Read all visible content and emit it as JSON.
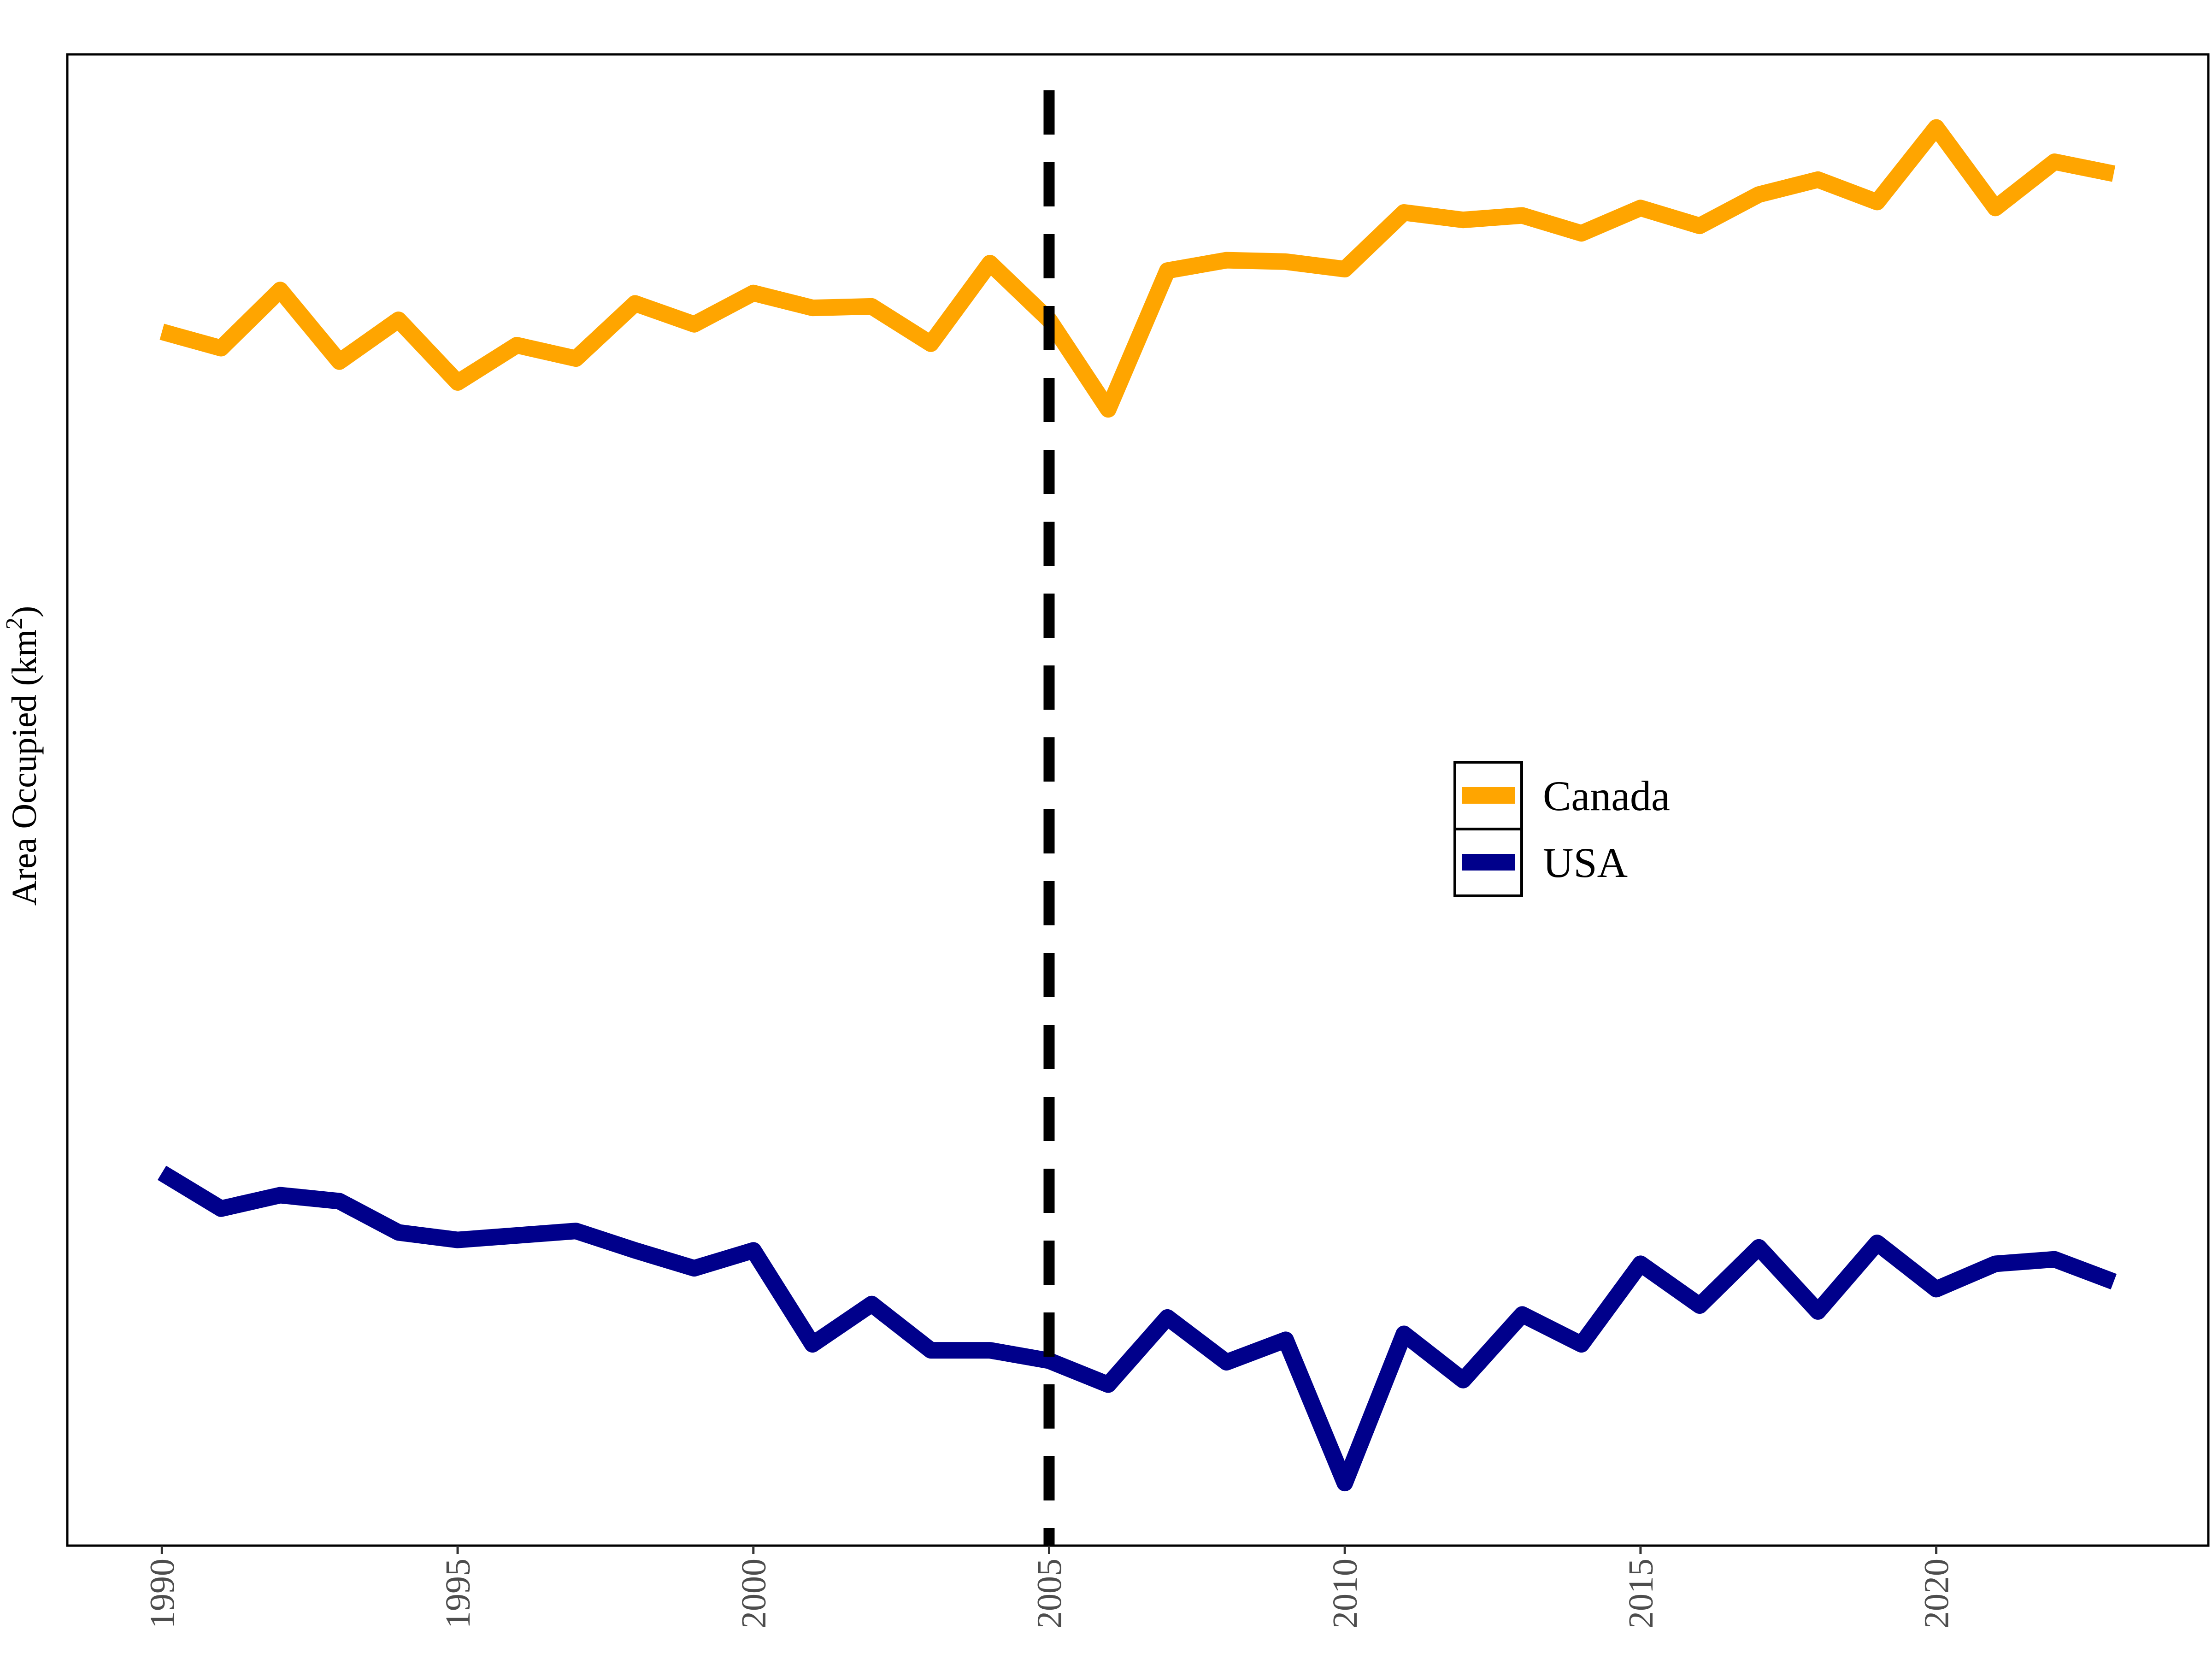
{
  "chart_data": {
    "type": "line",
    "title": "",
    "xlabel": "",
    "ylabel": "Area Occupied (km",
    "ylabel_superscript": "2",
    "ylabel_suffix": ")",
    "x": [
      1990,
      1991,
      1992,
      1993,
      1994,
      1995,
      1996,
      1997,
      1998,
      1999,
      2000,
      2001,
      2002,
      2003,
      2004,
      2005,
      2006,
      2007,
      2008,
      2009,
      2010,
      2011,
      2012,
      2013,
      2014,
      2015,
      2016,
      2017,
      2018,
      2019,
      2020,
      2021,
      2022,
      2023
    ],
    "x_ticks": [
      "1990",
      "1995",
      "2000",
      "2005",
      "2010",
      "2015",
      "2020"
    ],
    "xlim": [
      1988.4,
      2024.6
    ],
    "ylim": [
      0,
      1000
    ],
    "y_tick_labels_shown": false,
    "grid": false,
    "legend_position": "center-right",
    "reference_line": {
      "x": 2005,
      "style": "dashed",
      "color": "#000000"
    },
    "series": [
      {
        "name": "Canada",
        "color": "#FFA500",
        "values": [
          814,
          803,
          842,
          794,
          822,
          780,
          805,
          796,
          833,
          819,
          840,
          830,
          831,
          806,
          860,
          822,
          762,
          855,
          862,
          861,
          856,
          894,
          889,
          892,
          880,
          897,
          885,
          906,
          916,
          901,
          951,
          897,
          928,
          920
        ]
      },
      {
        "name": "USA",
        "color": "#00008B",
        "values": [
          250,
          226,
          235,
          231,
          210,
          205,
          208,
          211,
          198,
          186,
          198,
          135,
          162,
          131,
          131,
          124,
          108,
          153,
          123,
          138,
          42,
          142,
          111,
          155,
          135,
          189,
          161,
          200,
          157,
          203,
          172,
          189,
          192,
          177
        ]
      }
    ]
  }
}
